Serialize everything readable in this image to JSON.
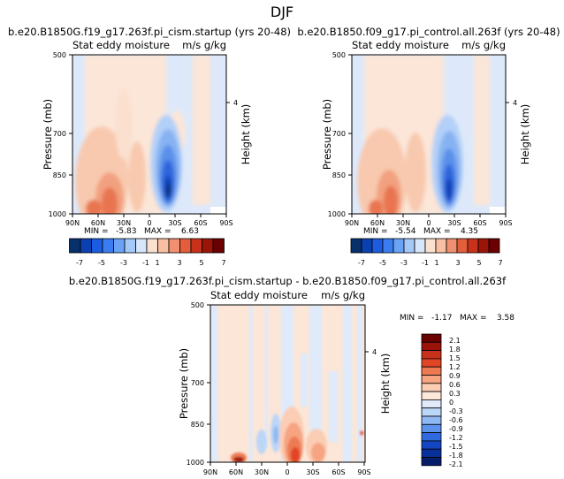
{
  "page_title": "DJF",
  "chart_data": [
    {
      "type": "heatmap",
      "title": "b.e20.B1850G.f19_g17.263f.pi_cism.startup (yrs 20-48)",
      "variable": "Stat eddy moisture",
      "units": "m/s g/kg",
      "ylabel": "Pressure (mb)",
      "ylabel_right": "Height (km)",
      "x_ticks": [
        "90N",
        "60N",
        "30N",
        "0",
        "30S",
        "60S",
        "90S"
      ],
      "y_ticks": [
        "500",
        "700",
        "850",
        "1000"
      ],
      "right_ticks": [
        "4"
      ],
      "min_max_text": "MIN =   -5.83   MAX =    6.63",
      "colorbar_labels": [
        "-7",
        "-5",
        "-3",
        "-1",
        "1",
        "3",
        "5",
        "7"
      ]
    },
    {
      "type": "heatmap",
      "title": "b.e20.B1850.f09_g17.pi_control.all.263f (yrs 20-48)",
      "variable": "Stat eddy moisture",
      "units": "m/s g/kg",
      "ylabel": "Pressure (mb)",
      "ylabel_right": "Height (km)",
      "x_ticks": [
        "90N",
        "60N",
        "30N",
        "0",
        "30S",
        "60S",
        "90S"
      ],
      "y_ticks": [
        "500",
        "700",
        "850",
        "1000"
      ],
      "right_ticks": [
        "4"
      ],
      "min_max_text": "MIN =   -5.54   MAX =    4.35",
      "colorbar_labels": [
        "-7",
        "-5",
        "-3",
        "-1",
        "1",
        "3",
        "5",
        "7"
      ]
    },
    {
      "type": "heatmap",
      "title": "b.e20.B1850G.f19_g17.263f.pi_cism.startup - b.e20.B1850.f09_g17.pi_control.all.263f",
      "variable": "Stat eddy moisture",
      "units": "m/s g/kg",
      "ylabel": "Pressure (mb)",
      "ylabel_right": "Height (km)",
      "x_ticks": [
        "90N",
        "60N",
        "30N",
        "0",
        "30S",
        "60S",
        "90S"
      ],
      "y_ticks": [
        "500",
        "700",
        "850",
        "1000"
      ],
      "right_ticks": [
        "4"
      ],
      "min_max_text": "MIN =   -1.17   MAX =    3.58",
      "colorbar_labels": [
        "2.1",
        "1.8",
        "1.5",
        "1.2",
        "0.9",
        "0.6",
        "0.3",
        "0",
        "-0.3",
        "-0.6",
        "-0.9",
        "-1.2",
        "-1.5",
        "-1.8",
        "-2.1"
      ]
    }
  ],
  "colors": {
    "bar12": [
      "#08306b",
      "#0b40b0",
      "#1c5ce0",
      "#3b7df0",
      "#6aa3f5",
      "#a4c8f8",
      "#d6e6fb",
      "#fbe0cf",
      "#f8bfa2",
      "#f19070",
      "#e55e3c",
      "#c8321b",
      "#9b1408",
      "#6b0000"
    ],
    "bar3": [
      "#6b0000",
      "#9b1408",
      "#c8321b",
      "#e04525",
      "#ee7a52",
      "#f6a482",
      "#fbcdb4",
      "#fde7d9",
      "#dfeafb",
      "#bcd6f8",
      "#8fb8f3",
      "#5c92ec",
      "#3169de",
      "#1246c2",
      "#08309a",
      "#061e6a"
    ]
  }
}
